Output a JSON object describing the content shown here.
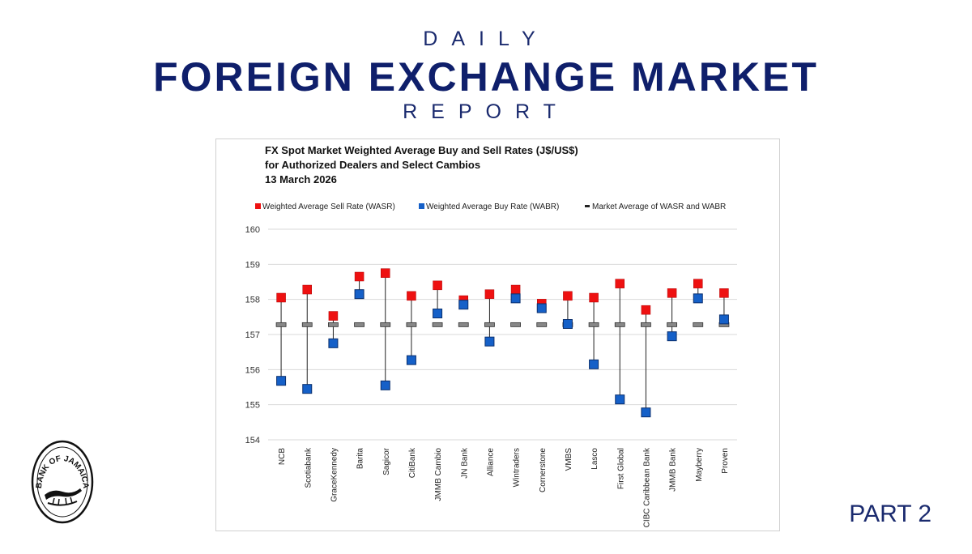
{
  "header": {
    "daily": "DAILY",
    "main": "FOREIGN EXCHANGE MARKET",
    "report": "REPORT"
  },
  "part_label": "PART 2",
  "seal": {
    "text": "BANK OF JAMAICA",
    "color": "#111111"
  },
  "colors": {
    "sell": "#ee1111",
    "buy": "#1560c8",
    "avg": "#888888",
    "header": "#0f1f6b"
  },
  "chart_data": {
    "type": "scatter",
    "title_lines": [
      "FX Spot Market Weighted Average Buy and Sell Rates (J$/US$)",
      "for Authorized Dealers and Select Cambios",
      "13 March 2026"
    ],
    "categories": [
      "NCB",
      "Scotiabank",
      "GraceKennedy",
      "Barita",
      "Sagicor",
      "CitiBank",
      "JMMB Cambio",
      "JN Bank",
      "Alliance",
      "Wintraders",
      "Cornerstone",
      "VMBS",
      "Lasco",
      "First Global",
      "CIBC Caribbean Bank",
      "JMMB Bank",
      "Mayberry",
      "Proven"
    ],
    "series": [
      {
        "name": "Weighted Average Sell Rate (WASR)",
        "values": [
          158.05,
          158.28,
          157.53,
          158.65,
          158.75,
          158.1,
          158.4,
          157.98,
          158.15,
          158.28,
          157.88,
          158.1,
          158.05,
          158.45,
          157.7,
          158.18,
          158.45,
          158.18
        ]
      },
      {
        "name": "Weighted Average Buy Rate (WABR)",
        "values": [
          155.68,
          155.45,
          156.75,
          158.15,
          155.55,
          156.27,
          157.6,
          157.85,
          156.8,
          158.03,
          157.75,
          157.3,
          156.15,
          155.15,
          154.78,
          156.95,
          158.03,
          157.43
        ]
      },
      {
        "name": "Market Average of WASR and WABR",
        "values": [
          157.28,
          157.28,
          157.28,
          157.28,
          157.28,
          157.28,
          157.28,
          157.28,
          157.28,
          157.28,
          157.28,
          157.28,
          157.28,
          157.28,
          157.28,
          157.28,
          157.28,
          157.28
        ]
      }
    ],
    "yticks": [
      "154",
      "155",
      "156",
      "157",
      "158",
      "159",
      "160"
    ],
    "ylim": [
      154,
      160
    ],
    "grid": true,
    "legend_position": "top"
  }
}
